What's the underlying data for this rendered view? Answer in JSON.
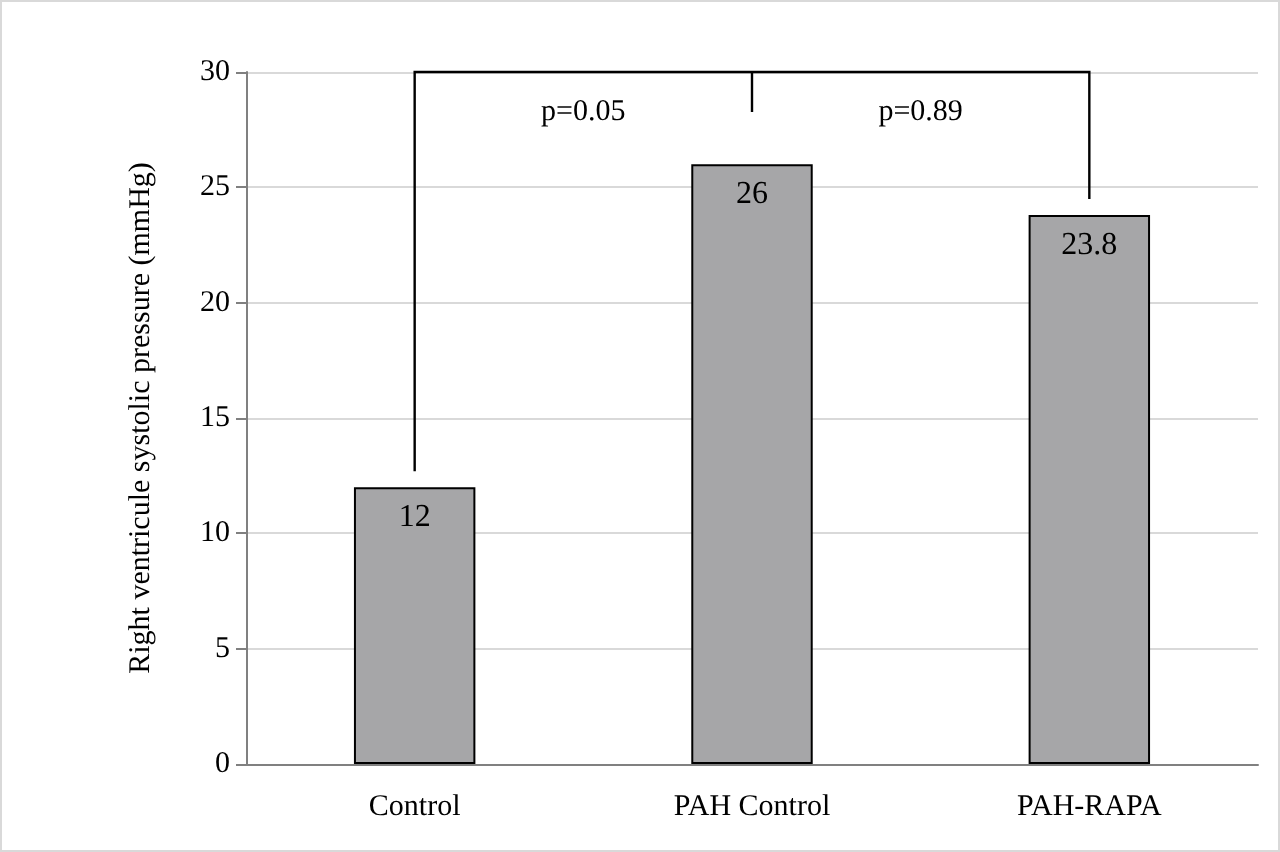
{
  "chart_data": {
    "type": "bar",
    "ylabel": "Right ventricule systolic pressure (mmHg)",
    "categories": [
      "Control",
      "PAH Control",
      "PAH-RAPA"
    ],
    "values": [
      12,
      26,
      23.8
    ],
    "color": "#a6a6a8",
    "ylim": [
      0,
      30
    ],
    "yticks": [
      0,
      5,
      10,
      15,
      20,
      25,
      30
    ],
    "grid": "y",
    "data_labels": true,
    "annotations": [
      "p=0.05",
      "p=0.89"
    ]
  }
}
